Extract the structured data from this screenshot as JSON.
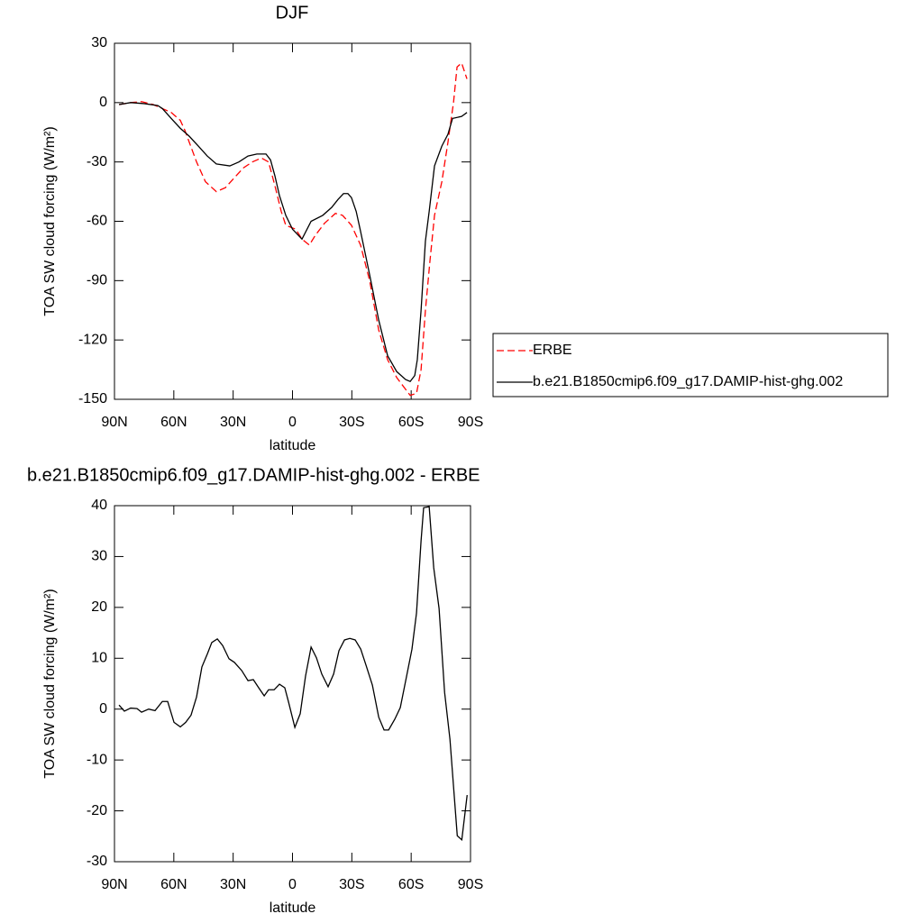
{
  "chart_data": [
    {
      "type": "line",
      "title": "DJF",
      "xlabel": "latitude",
      "ylabel": "TOA SW cloud forcing (W/m²)",
      "xlim": [
        90,
        -90
      ],
      "xticks": [
        {
          "value": 90,
          "label": "90N"
        },
        {
          "value": 60,
          "label": "60N"
        },
        {
          "value": 30,
          "label": "30N"
        },
        0,
        {
          "value": -30,
          "label": "30S"
        },
        {
          "value": -60,
          "label": "60S"
        },
        {
          "value": -90,
          "label": "90S"
        }
      ],
      "ylim": [
        -150,
        30
      ],
      "yticks": [
        -150,
        -120,
        -90,
        -60,
        -30,
        0,
        30
      ],
      "legend": "right",
      "series": [
        {
          "name": "ERBE",
          "color": "#ff0000",
          "dashed": true,
          "x": [
            87.7,
            81.8,
            76.3,
            70.4,
            65.8,
            61.3,
            56.7,
            54.4,
            52.2,
            48.5,
            44.0,
            38.5,
            33.9,
            29.4,
            24.8,
            20.3,
            15.7,
            12.1,
            8.9,
            5.7,
            3.4,
            -1.6,
            -4.8,
            -8.5,
            -11.6,
            -16.2,
            -21.7,
            -25.3,
            -29.8,
            -34.4,
            -39.0,
            -43.6,
            -48.1,
            -52.7,
            -57.2,
            -59.5,
            -62.7,
            -65.0,
            -67.2,
            -69.5,
            -71.8,
            -75.5,
            -78.6,
            -81.4,
            -83.2,
            -85.5,
            -88.2
          ],
          "values": [
            -1,
            0,
            0.5,
            -1,
            -3,
            -5,
            -9,
            -14,
            -20,
            -30,
            -40,
            -45,
            -43,
            -38,
            -33,
            -30,
            -28,
            -30,
            -42,
            -55,
            -62,
            -64,
            -69,
            -72,
            -67,
            -61,
            -56,
            -57,
            -62,
            -72,
            -90,
            -115,
            -130,
            -139,
            -145,
            -148,
            -147,
            -135,
            -105,
            -80,
            -57,
            -40,
            -20,
            0,
            18,
            20,
            12
          ]
        },
        {
          "name": "b.e21.B1850cmip6.f09_g17.DAMIP-hist-ghg.002",
          "color": "#000000",
          "dashed": false,
          "x": [
            87.7,
            81.8,
            75.0,
            68.1,
            65.8,
            61.3,
            56.7,
            52.2,
            47.6,
            43.1,
            38.5,
            31.7,
            27.1,
            22.5,
            18.0,
            13.4,
            11.1,
            8.9,
            6.6,
            3.4,
            0,
            -4.8,
            -9.4,
            -15.3,
            -19.8,
            -23.0,
            -25.8,
            -28.0,
            -29.8,
            -32.2,
            -34.4,
            -39.0,
            -43.6,
            -48.1,
            -52.7,
            -57.2,
            -59.5,
            -61.8,
            -63.1,
            -65.0,
            -67.2,
            -69.1,
            -71.8,
            -75.5,
            -78.6,
            -80.9,
            -85.5,
            -88.2
          ],
          "values": [
            -1,
            0,
            -0.5,
            -1.5,
            -3,
            -8,
            -13,
            -17,
            -22,
            -27,
            -31,
            -32,
            -30,
            -27,
            -26,
            -26,
            -29,
            -37,
            -47,
            -57,
            -64,
            -69,
            -60,
            -57,
            -53,
            -49,
            -46,
            -46,
            -48,
            -55,
            -65,
            -87,
            -110,
            -128,
            -136,
            -140,
            -141,
            -138,
            -130,
            -105,
            -70,
            -55,
            -32,
            -22,
            -16,
            -8,
            -7,
            -5
          ]
        }
      ]
    },
    {
      "type": "line",
      "title": "b.e21.B1850cmip6.f09_g17.DAMIP-hist-ghg.002 - ERBE",
      "xlabel": "latitude",
      "ylabel": "TOA SW cloud forcing (W/m²)",
      "xlim": [
        90,
        -90
      ],
      "xticks": [
        {
          "value": 90,
          "label": "90N"
        },
        {
          "value": 60,
          "label": "60N"
        },
        {
          "value": 30,
          "label": "30N"
        },
        0,
        {
          "value": -30,
          "label": "30S"
        },
        {
          "value": -60,
          "label": "60S"
        },
        {
          "value": -90,
          "label": "90S"
        }
      ],
      "ylim": [
        -30,
        40
      ],
      "yticks": [
        -30,
        -20,
        -10,
        0,
        10,
        20,
        30,
        40
      ],
      "series": [
        {
          "color": "#000000",
          "dashed": false,
          "x": [
            87.7,
            85.0,
            81.8,
            78.6,
            76.3,
            72.7,
            69.5,
            65.8,
            63.1,
            59.9,
            56.7,
            54.0,
            51.3,
            48.5,
            45.8,
            43.0,
            40.8,
            38.0,
            35.3,
            32.1,
            29.4,
            25.7,
            22.5,
            19.8,
            17.1,
            14.3,
            12.1,
            9.3,
            6.6,
            3.9,
            2.0,
            -1.2,
            -3.9,
            -6.6,
            -9.4,
            -12.1,
            -14.8,
            -18.0,
            -20.8,
            -23.5,
            -26.3,
            -29.0,
            -31.7,
            -34.5,
            -37.2,
            -40.4,
            -43.6,
            -46.3,
            -48.6,
            -51.7,
            -54.5,
            -57.7,
            -60.4,
            -62.7,
            -65.0,
            -66.3,
            -69.1,
            -71.4,
            -74.1,
            -76.9,
            -79.6,
            -83.3,
            -85.6,
            -88.3
          ],
          "values": [
            0.8,
            -0.4,
            0.2,
            0.1,
            -0.6,
            0,
            -0.3,
            1.5,
            1.5,
            -2.6,
            -3.5,
            -2.6,
            -1.2,
            2.4,
            8.3,
            10.9,
            13.1,
            13.8,
            12.5,
            9.9,
            9.2,
            7.6,
            5.6,
            5.8,
            4.2,
            2.6,
            3.8,
            3.8,
            4.9,
            4.2,
            1.4,
            -3.6,
            -0.9,
            6.5,
            12.2,
            10.1,
            6.9,
            4.4,
            6.9,
            11.5,
            13.6,
            13.9,
            13.6,
            11.8,
            8.6,
            4.7,
            -1.6,
            -4.1,
            -4.1,
            -2.0,
            0.3,
            6.5,
            11.8,
            18.9,
            33.1,
            39.6,
            39.8,
            27.8,
            19.8,
            3.3,
            -5.9,
            -24.9,
            -25.7,
            -16.9
          ]
        }
      ]
    }
  ]
}
